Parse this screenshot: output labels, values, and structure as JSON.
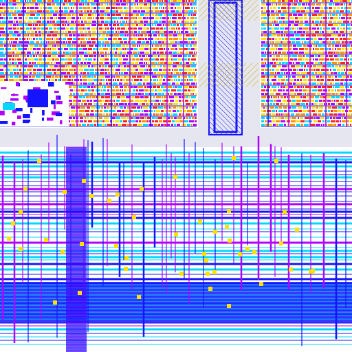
{
  "viewer": {
    "content_kind": "ic-layout-view",
    "layer_colors": {
      "substrate": "#ffffff",
      "cell_fill": "#c8c8ff",
      "metal1": "#1414ff",
      "metal2": "#00d8ff",
      "metal3": "#b000ff",
      "via_pad": "#ffe000",
      "poly": "#ff2020",
      "diffusion": "#ff9000",
      "channel": "#e6e6f0",
      "hatch": "#c8b400"
    },
    "regions": [
      {
        "name": "top-left-standard-cell-array"
      },
      {
        "name": "top-right-standard-cell-array"
      },
      {
        "name": "center-hatched-column-block"
      },
      {
        "name": "left-control-block"
      },
      {
        "name": "lower-routing-region"
      },
      {
        "name": "routing-channel-horizontal"
      },
      {
        "name": "routing-channel-vertical"
      }
    ]
  }
}
